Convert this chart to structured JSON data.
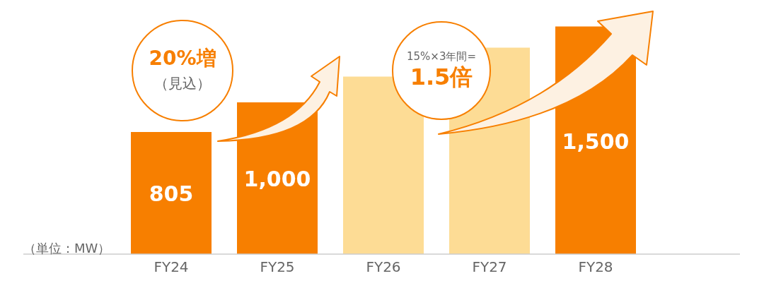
{
  "chart_data": {
    "type": "bar",
    "categories": [
      "FY24",
      "FY25",
      "FY26",
      "FY27",
      "FY28"
    ],
    "values": [
      805,
      1000,
      1170,
      1360,
      1500
    ],
    "colors": [
      "#f77f00",
      "#f77f00",
      "#fddc95",
      "#fddc95",
      "#f77f00"
    ],
    "value_labels": [
      "805",
      "1,000",
      null,
      null,
      "1,500"
    ],
    "grid": false,
    "legend": false,
    "annotations": [
      "（単位：MW）",
      "20%増",
      "（見込）",
      "15%×3年間=",
      "1.5倍"
    ]
  }
}
